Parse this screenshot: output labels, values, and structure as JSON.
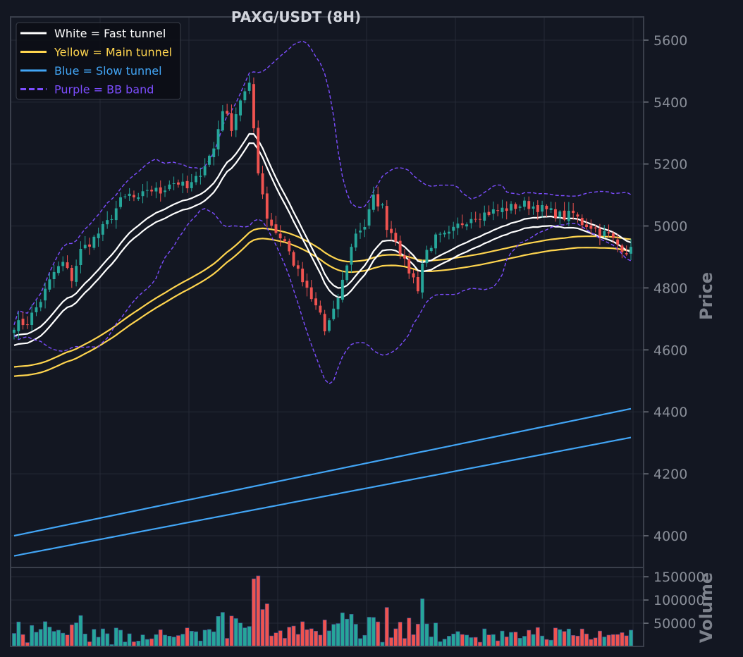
{
  "chart_data": {
    "type": "candlestick",
    "title": "PAXG/USDT (8H)",
    "ylabel": "Price",
    "volume_label": "Volume",
    "ylim": [
      3920,
      5670
    ],
    "yticks": [
      4000,
      4200,
      4400,
      4600,
      4800,
      5000,
      5200,
      5400,
      5600
    ],
    "volume_ylim": [
      0,
      170000
    ],
    "volume_yticks": [
      50000,
      100000,
      150000
    ],
    "volume_tick_labels": [
      "50000",
      "100000",
      "150000"
    ],
    "grid": true,
    "legend_position": "top-left",
    "n_bars": 140,
    "colors": {
      "background": "#131722",
      "up": "#26a69a",
      "down": "#ef5350",
      "fast": "#ffffff",
      "main": "#ffd54f",
      "slow": "#42a5f5",
      "bb": "#7c4dff"
    },
    "legend": [
      {
        "label": "White = Fast tunnel",
        "color": "#ffffff",
        "dashed": false
      },
      {
        "label": "Yellow = Main tunnel",
        "color": "#ffd54f",
        "dashed": false
      },
      {
        "label": "Blue = Slow tunnel",
        "color": "#42a5f5",
        "dashed": false
      },
      {
        "label": "Purple = BB band",
        "color": "#7c4dff",
        "dashed": true
      }
    ],
    "close_path": [
      [
        0,
        4680
      ],
      [
        3,
        4690
      ],
      [
        6,
        4760
      ],
      [
        9,
        4850
      ],
      [
        11,
        4880
      ],
      [
        13,
        4830
      ],
      [
        15,
        4920
      ],
      [
        18,
        4960
      ],
      [
        21,
        5010
      ],
      [
        24,
        5080
      ],
      [
        26,
        5100
      ],
      [
        28,
        5080
      ],
      [
        30,
        5120
      ],
      [
        33,
        5110
      ],
      [
        35,
        5140
      ],
      [
        37,
        5140
      ],
      [
        39,
        5120
      ],
      [
        41,
        5150
      ],
      [
        43,
        5200
      ],
      [
        45,
        5250
      ],
      [
        47,
        5380
      ],
      [
        49,
        5320
      ],
      [
        51,
        5410
      ],
      [
        53,
        5450
      ],
      [
        55,
        5180
      ],
      [
        57,
        5030
      ],
      [
        59,
        4980
      ],
      [
        61,
        4950
      ],
      [
        63,
        4880
      ],
      [
        65,
        4820
      ],
      [
        67,
        4760
      ],
      [
        69,
        4720
      ],
      [
        70,
        4660
      ],
      [
        72,
        4720
      ],
      [
        74,
        4820
      ],
      [
        75,
        4880
      ],
      [
        77,
        4980
      ],
      [
        79,
        5000
      ],
      [
        81,
        5090
      ],
      [
        83,
        5060
      ],
      [
        84,
        5000
      ],
      [
        86,
        4960
      ],
      [
        88,
        4880
      ],
      [
        90,
        4830
      ],
      [
        91,
        4800
      ],
      [
        92,
        4880
      ],
      [
        93,
        4920
      ],
      [
        95,
        4960
      ],
      [
        98,
        4970
      ],
      [
        100,
        5000
      ],
      [
        103,
        5030
      ],
      [
        106,
        5040
      ],
      [
        109,
        5050
      ],
      [
        112,
        5060
      ],
      [
        115,
        5070
      ],
      [
        118,
        5060
      ],
      [
        120,
        5050
      ],
      [
        122,
        5040
      ],
      [
        124,
        5030
      ],
      [
        126,
        5040
      ],
      [
        128,
        5010
      ],
      [
        130,
        5000
      ],
      [
        132,
        4980
      ],
      [
        134,
        4970
      ],
      [
        136,
        4940
      ],
      [
        138,
        4920
      ]
    ],
    "close_path_note": "",
    "price_anchor_bar_positions": []
  }
}
